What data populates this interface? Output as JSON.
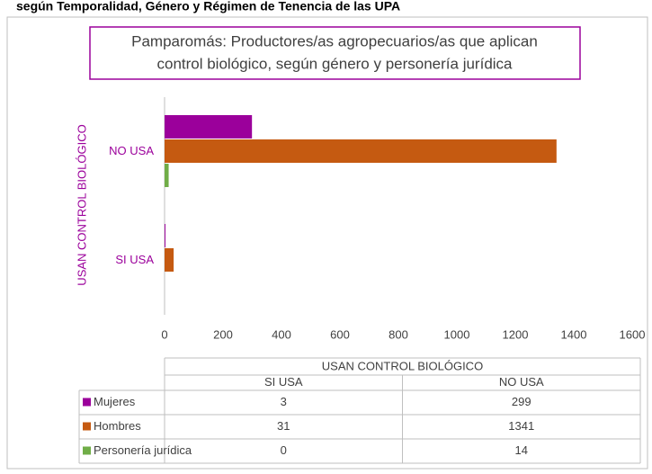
{
  "chart_data": {
    "type": "barh",
    "heading": "según Temporalidad, Género y Régimen de Tenencia de las UPA",
    "title": [
      "Pamparomás: Productores/as agropecuarios/as que aplican",
      "control biológico, según género y personería jurídica"
    ],
    "y_label": "USAN CONTROL BIOLÓGICO",
    "categories": [
      "SI USA",
      "NO USA"
    ],
    "series": [
      {
        "name": "Mujeres",
        "color": "#9b009b",
        "values": [
          3,
          299
        ]
      },
      {
        "name": "Hombres",
        "color": "#c55a11",
        "values": [
          31,
          1341
        ]
      },
      {
        "name": "Personería jurídica",
        "color": "#70ad47",
        "values": [
          0,
          14
        ]
      }
    ],
    "xlim": [
      0,
      1600
    ],
    "xticks": [
      0,
      200,
      400,
      600,
      800,
      1000,
      1200,
      1400,
      1600
    ]
  }
}
